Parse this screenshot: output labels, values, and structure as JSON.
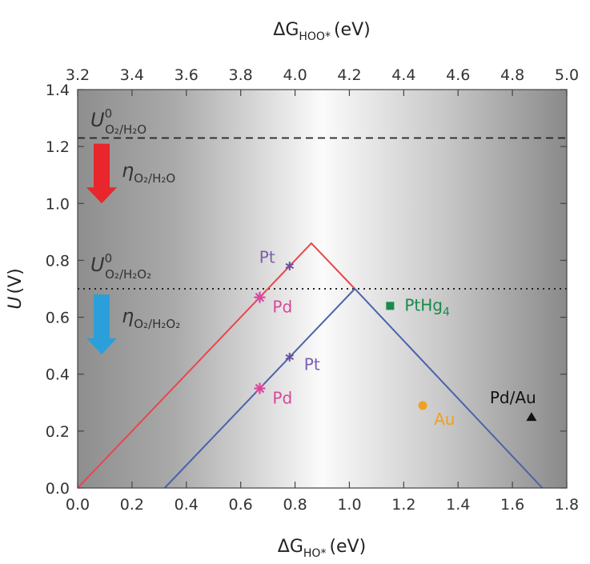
{
  "chart_data": {
    "type": "line",
    "xlabel": {
      "symbol": "ΔG",
      "sub": "HO*",
      "unit": "(eV)"
    },
    "x2label": {
      "symbol": "ΔG",
      "sub": "HOO*",
      "unit": "(eV)"
    },
    "ylabel": {
      "symbol": "U",
      "unit": "(V)"
    },
    "xlim": [
      0.0,
      1.8
    ],
    "x2lim": [
      3.2,
      5.0
    ],
    "ylim": [
      0.0,
      1.4
    ],
    "xticks": [
      "0.0",
      "0.2",
      "0.4",
      "0.6",
      "0.8",
      "1.0",
      "1.2",
      "1.4",
      "1.6",
      "1.8"
    ],
    "x2ticks": [
      "3.2",
      "3.4",
      "3.6",
      "3.8",
      "4.0",
      "4.2",
      "4.4",
      "4.6",
      "4.8",
      "5.0"
    ],
    "yticks": [
      "0.0",
      "0.2",
      "0.4",
      "0.6",
      "0.8",
      "1.0",
      "1.2",
      "1.4"
    ],
    "reference_lines": [
      {
        "y": 1.23,
        "style": "dashed",
        "label": {
          "main": "U",
          "sup": "0",
          "sub": "O₂/H₂O"
        }
      },
      {
        "y": 0.7,
        "style": "dotted",
        "label": {
          "main": "U",
          "sup": "0",
          "sub": "O₂/H₂O₂"
        }
      }
    ],
    "overpotential_arrows": [
      {
        "label": {
          "main": "η",
          "sub": "O₂/H₂O"
        },
        "color": "#e8262b",
        "y_from": 1.21,
        "y_to": 1.0
      },
      {
        "label": {
          "main": "η",
          "sub": "O₂/H₂O₂"
        },
        "color": "#2b9fd9",
        "y_from": 0.68,
        "y_to": 0.47
      }
    ],
    "series": [
      {
        "color": "#e8474c",
        "x": [
          0.0,
          0.86,
          1.02
        ],
        "y": [
          0.0,
          0.86,
          0.7
        ]
      },
      {
        "color": "#4a63ad",
        "x": [
          0.32,
          1.02,
          1.71
        ],
        "y": [
          0.0,
          0.7,
          0.0
        ]
      }
    ],
    "points": [
      {
        "label": "Pt",
        "x": 0.78,
        "y": 0.78,
        "marker": "star",
        "color": "#6b4fa0",
        "label_color": "#7a5fb0"
      },
      {
        "label": "Pt",
        "x": 0.78,
        "y": 0.46,
        "marker": "star",
        "color": "#6b4fa0",
        "label_color": "#7a5fb0"
      },
      {
        "label": "Pd",
        "x": 0.67,
        "y": 0.67,
        "marker": "star",
        "color": "#d9479a",
        "label_color": "#d9479a"
      },
      {
        "label": "Pd",
        "x": 0.67,
        "y": 0.35,
        "marker": "star",
        "color": "#d9479a",
        "label_color": "#d9479a"
      },
      {
        "label": "PtHg",
        "label_sub": "4",
        "x": 1.15,
        "y": 0.64,
        "marker": "square",
        "color": "#1a8a4a",
        "label_color": "#1a8a4a"
      },
      {
        "label": "Au",
        "x": 1.27,
        "y": 0.29,
        "marker": "circle",
        "color": "#f0a020",
        "label_color": "#f0a020"
      },
      {
        "label": "Pd/Au",
        "x": 1.67,
        "y": 0.25,
        "marker": "triangle",
        "color": "#111111",
        "label_color": "#111111"
      }
    ]
  }
}
